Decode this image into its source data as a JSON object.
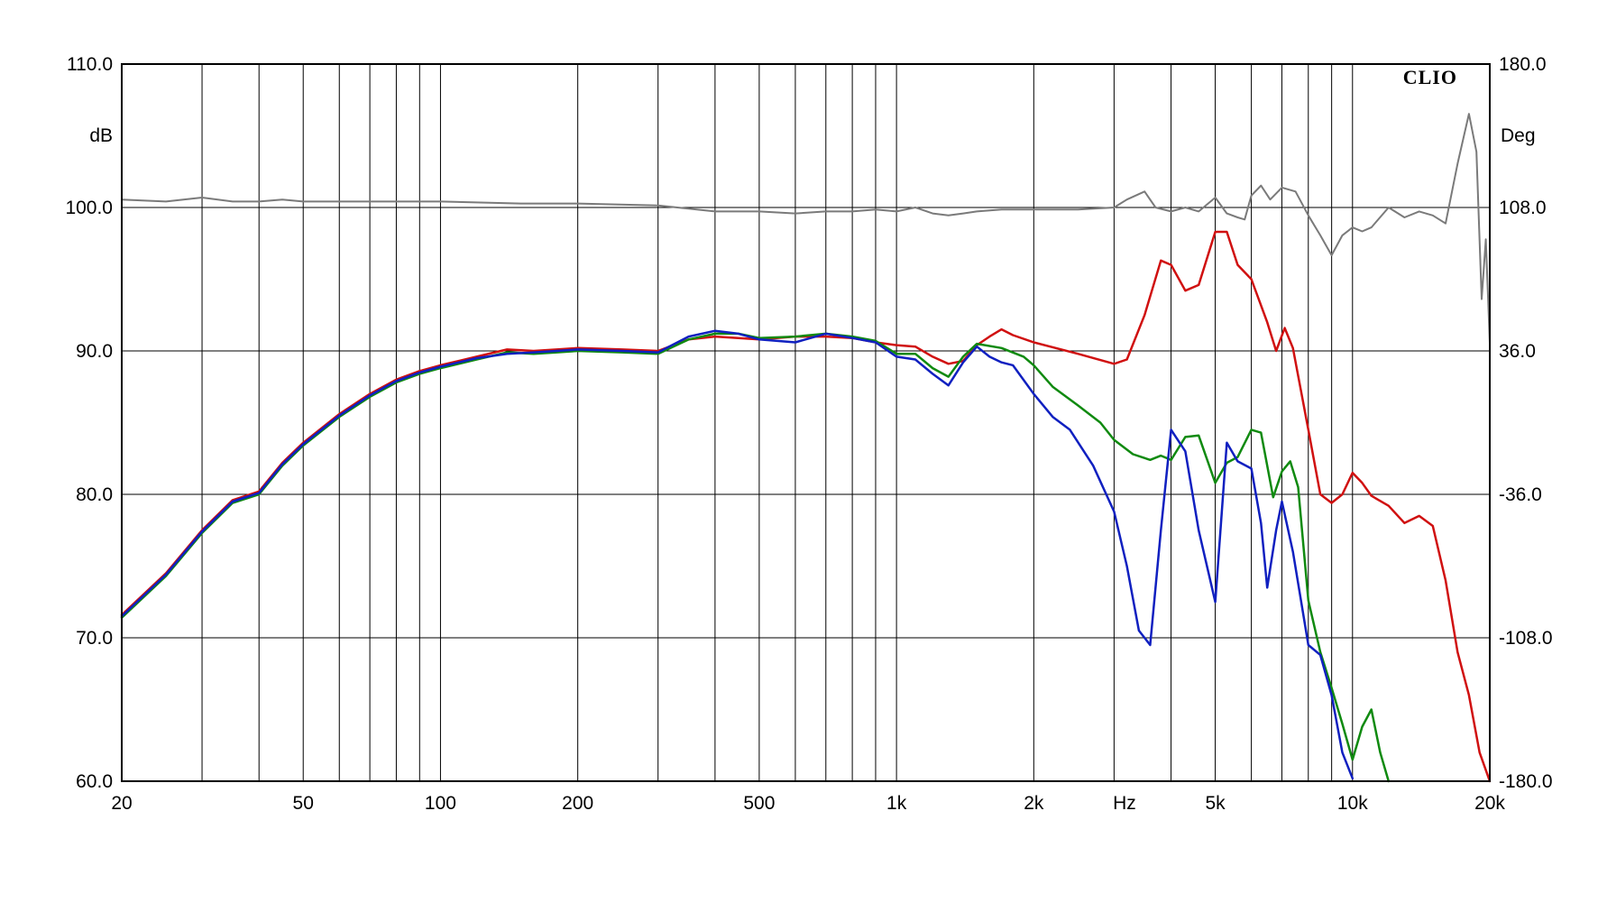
{
  "chart_data": {
    "type": "line",
    "title": "",
    "brand": "CLIO",
    "xlabel": "Hz",
    "ylabel": "dB",
    "y2label": "Deg",
    "x_scale": "log",
    "xlim": [
      20,
      20000
    ],
    "ylim": [
      60,
      110
    ],
    "y2lim": [
      -180,
      180
    ],
    "grid": true,
    "x_ticks": [
      {
        "value": 20,
        "label": "20"
      },
      {
        "value": 50,
        "label": "50"
      },
      {
        "value": 100,
        "label": "100"
      },
      {
        "value": 200,
        "label": "200"
      },
      {
        "value": 500,
        "label": "500"
      },
      {
        "value": 1000,
        "label": "1k"
      },
      {
        "value": 2000,
        "label": "2k"
      },
      {
        "value": 5000,
        "label": "5k"
      },
      {
        "value": 10000,
        "label": "10k"
      },
      {
        "value": 20000,
        "label": "20k"
      }
    ],
    "y_ticks": [
      {
        "value": 60,
        "label": "60.0"
      },
      {
        "value": 70,
        "label": "70.0"
      },
      {
        "value": 80,
        "label": "80.0"
      },
      {
        "value": 90,
        "label": "90.0"
      },
      {
        "value": 100,
        "label": "100.0"
      },
      {
        "value": 110,
        "label": "110.0"
      }
    ],
    "y2_ticks": [
      {
        "value": -180,
        "label": "-180.0"
      },
      {
        "value": -108,
        "label": "-108.0"
      },
      {
        "value": -36,
        "label": "-36.0"
      },
      {
        "value": 36,
        "label": "36.0"
      },
      {
        "value": 108,
        "label": "108.0"
      },
      {
        "value": 180,
        "label": "180.0"
      }
    ],
    "series": [
      {
        "color": "#d01010",
        "axis": "left",
        "points": [
          [
            20,
            71.6
          ],
          [
            25,
            74.5
          ],
          [
            30,
            77.5
          ],
          [
            35,
            79.6
          ],
          [
            40,
            80.2
          ],
          [
            45,
            82.2
          ],
          [
            50,
            83.6
          ],
          [
            60,
            85.6
          ],
          [
            70,
            87.0
          ],
          [
            80,
            88.0
          ],
          [
            90,
            88.6
          ],
          [
            100,
            89.0
          ],
          [
            120,
            89.6
          ],
          [
            140,
            90.1
          ],
          [
            160,
            90.0
          ],
          [
            180,
            90.1
          ],
          [
            200,
            90.2
          ],
          [
            250,
            90.1
          ],
          [
            300,
            90.0
          ],
          [
            350,
            90.8
          ],
          [
            400,
            91.0
          ],
          [
            450,
            90.9
          ],
          [
            500,
            90.8
          ],
          [
            600,
            91.0
          ],
          [
            700,
            91.0
          ],
          [
            800,
            90.9
          ],
          [
            900,
            90.6
          ],
          [
            1000,
            90.4
          ],
          [
            1100,
            90.3
          ],
          [
            1200,
            89.6
          ],
          [
            1300,
            89.1
          ],
          [
            1400,
            89.3
          ],
          [
            1500,
            90.4
          ],
          [
            1600,
            91.0
          ],
          [
            1700,
            91.5
          ],
          [
            1800,
            91.1
          ],
          [
            2000,
            90.6
          ],
          [
            2500,
            89.8
          ],
          [
            3000,
            89.1
          ],
          [
            3200,
            89.4
          ],
          [
            3500,
            92.5
          ],
          [
            3800,
            96.3
          ],
          [
            4000,
            96.0
          ],
          [
            4300,
            94.2
          ],
          [
            4600,
            94.6
          ],
          [
            5000,
            98.3
          ],
          [
            5300,
            98.3
          ],
          [
            5600,
            96.0
          ],
          [
            6000,
            95.0
          ],
          [
            6500,
            92.0
          ],
          [
            6800,
            90.0
          ],
          [
            7100,
            91.6
          ],
          [
            7400,
            90.2
          ],
          [
            8000,
            84.5
          ],
          [
            8500,
            80.0
          ],
          [
            9000,
            79.4
          ],
          [
            9500,
            80.0
          ],
          [
            10000,
            81.5
          ],
          [
            10500,
            80.8
          ],
          [
            11000,
            79.9
          ],
          [
            12000,
            79.2
          ],
          [
            13000,
            78.0
          ],
          [
            14000,
            78.5
          ],
          [
            15000,
            77.8
          ],
          [
            16000,
            74.0
          ],
          [
            17000,
            69.0
          ],
          [
            18000,
            66.0
          ],
          [
            19000,
            62.0
          ],
          [
            20000,
            60.0
          ]
        ]
      },
      {
        "color": "#108a10",
        "axis": "left",
        "points": [
          [
            20,
            71.4
          ],
          [
            25,
            74.3
          ],
          [
            30,
            77.3
          ],
          [
            35,
            79.4
          ],
          [
            40,
            80.0
          ],
          [
            45,
            82.0
          ],
          [
            50,
            83.4
          ],
          [
            60,
            85.4
          ],
          [
            70,
            86.8
          ],
          [
            80,
            87.8
          ],
          [
            90,
            88.4
          ],
          [
            100,
            88.8
          ],
          [
            120,
            89.4
          ],
          [
            140,
            89.9
          ],
          [
            160,
            89.8
          ],
          [
            180,
            89.9
          ],
          [
            200,
            90.0
          ],
          [
            250,
            89.9
          ],
          [
            300,
            89.8
          ],
          [
            350,
            90.8
          ],
          [
            400,
            91.2
          ],
          [
            450,
            91.2
          ],
          [
            500,
            90.9
          ],
          [
            600,
            91.0
          ],
          [
            700,
            91.2
          ],
          [
            800,
            91.0
          ],
          [
            900,
            90.7
          ],
          [
            1000,
            89.8
          ],
          [
            1100,
            89.8
          ],
          [
            1200,
            88.8
          ],
          [
            1300,
            88.2
          ],
          [
            1400,
            89.6
          ],
          [
            1500,
            90.5
          ],
          [
            1700,
            90.2
          ],
          [
            1900,
            89.6
          ],
          [
            2000,
            89.0
          ],
          [
            2200,
            87.5
          ],
          [
            2500,
            86.2
          ],
          [
            2800,
            85.0
          ],
          [
            3000,
            83.8
          ],
          [
            3300,
            82.8
          ],
          [
            3600,
            82.4
          ],
          [
            3800,
            82.7
          ],
          [
            4000,
            82.4
          ],
          [
            4300,
            84.0
          ],
          [
            4600,
            84.1
          ],
          [
            5000,
            80.8
          ],
          [
            5300,
            82.2
          ],
          [
            5600,
            82.6
          ],
          [
            6000,
            84.5
          ],
          [
            6300,
            84.3
          ],
          [
            6700,
            79.8
          ],
          [
            7000,
            81.6
          ],
          [
            7300,
            82.3
          ],
          [
            7600,
            80.5
          ],
          [
            8000,
            72.6
          ],
          [
            8500,
            69.0
          ],
          [
            9000,
            66.5
          ],
          [
            9500,
            64.0
          ],
          [
            10000,
            61.5
          ],
          [
            10500,
            63.8
          ],
          [
            11000,
            65.0
          ],
          [
            11500,
            62.0
          ],
          [
            12000,
            60.0
          ]
        ]
      },
      {
        "color": "#1020c0",
        "axis": "left",
        "points": [
          [
            20,
            71.5
          ],
          [
            25,
            74.4
          ],
          [
            30,
            77.4
          ],
          [
            35,
            79.5
          ],
          [
            40,
            80.1
          ],
          [
            45,
            82.1
          ],
          [
            50,
            83.5
          ],
          [
            60,
            85.5
          ],
          [
            70,
            86.9
          ],
          [
            80,
            87.9
          ],
          [
            90,
            88.5
          ],
          [
            100,
            88.9
          ],
          [
            120,
            89.5
          ],
          [
            140,
            89.8
          ],
          [
            160,
            89.9
          ],
          [
            180,
            90.0
          ],
          [
            200,
            90.1
          ],
          [
            250,
            90.0
          ],
          [
            300,
            89.9
          ],
          [
            350,
            91.0
          ],
          [
            400,
            91.4
          ],
          [
            450,
            91.2
          ],
          [
            500,
            90.8
          ],
          [
            600,
            90.6
          ],
          [
            700,
            91.2
          ],
          [
            800,
            90.9
          ],
          [
            900,
            90.6
          ],
          [
            1000,
            89.6
          ],
          [
            1100,
            89.4
          ],
          [
            1200,
            88.4
          ],
          [
            1300,
            87.6
          ],
          [
            1400,
            89.2
          ],
          [
            1500,
            90.3
          ],
          [
            1600,
            89.6
          ],
          [
            1700,
            89.2
          ],
          [
            1800,
            89.0
          ],
          [
            2000,
            87.0
          ],
          [
            2200,
            85.4
          ],
          [
            2400,
            84.5
          ],
          [
            2700,
            82.0
          ],
          [
            3000,
            78.8
          ],
          [
            3200,
            75.0
          ],
          [
            3400,
            70.5
          ],
          [
            3600,
            69.5
          ],
          [
            3800,
            77.5
          ],
          [
            4000,
            84.5
          ],
          [
            4300,
            83.0
          ],
          [
            4600,
            77.5
          ],
          [
            5000,
            72.5
          ],
          [
            5300,
            83.6
          ],
          [
            5600,
            82.3
          ],
          [
            6000,
            81.8
          ],
          [
            6300,
            78.0
          ],
          [
            6500,
            73.5
          ],
          [
            6800,
            77.5
          ],
          [
            7000,
            79.5
          ],
          [
            7400,
            76.0
          ],
          [
            8000,
            69.5
          ],
          [
            8500,
            68.8
          ],
          [
            9000,
            66.0
          ],
          [
            9500,
            62.0
          ],
          [
            10000,
            60.2
          ]
        ]
      },
      {
        "color": "#7a7a7a",
        "axis": "right",
        "points": [
          [
            20,
            112
          ],
          [
            25,
            111
          ],
          [
            30,
            113
          ],
          [
            35,
            111
          ],
          [
            40,
            111
          ],
          [
            45,
            112
          ],
          [
            50,
            111
          ],
          [
            60,
            111
          ],
          [
            70,
            111
          ],
          [
            80,
            111
          ],
          [
            100,
            111
          ],
          [
            150,
            110
          ],
          [
            200,
            110
          ],
          [
            300,
            109
          ],
          [
            400,
            106
          ],
          [
            500,
            106
          ],
          [
            600,
            105
          ],
          [
            700,
            106
          ],
          [
            800,
            106
          ],
          [
            900,
            107
          ],
          [
            1000,
            106
          ],
          [
            1100,
            108
          ],
          [
            1200,
            105
          ],
          [
            1300,
            104
          ],
          [
            1400,
            105
          ],
          [
            1500,
            106
          ],
          [
            1700,
            107
          ],
          [
            2000,
            107
          ],
          [
            2500,
            107
          ],
          [
            3000,
            108
          ],
          [
            3200,
            112
          ],
          [
            3500,
            116
          ],
          [
            3700,
            108
          ],
          [
            4000,
            106
          ],
          [
            4300,
            108
          ],
          [
            4600,
            106
          ],
          [
            5000,
            113
          ],
          [
            5300,
            105
          ],
          [
            5600,
            103
          ],
          [
            5800,
            102
          ],
          [
            6000,
            114
          ],
          [
            6300,
            119
          ],
          [
            6600,
            112
          ],
          [
            7000,
            118
          ],
          [
            7500,
            116
          ],
          [
            8000,
            104
          ],
          [
            8500,
            94
          ],
          [
            9000,
            84
          ],
          [
            9500,
            94
          ],
          [
            10000,
            98
          ],
          [
            10500,
            96
          ],
          [
            11000,
            98
          ],
          [
            12000,
            108
          ],
          [
            13000,
            103
          ],
          [
            14000,
            106
          ],
          [
            15000,
            104
          ],
          [
            16000,
            100
          ],
          [
            17000,
            130
          ],
          [
            18000,
            155
          ],
          [
            18700,
            136
          ],
          [
            19200,
            62
          ],
          [
            19600,
            92
          ],
          [
            20000,
            40
          ]
        ]
      }
    ]
  }
}
